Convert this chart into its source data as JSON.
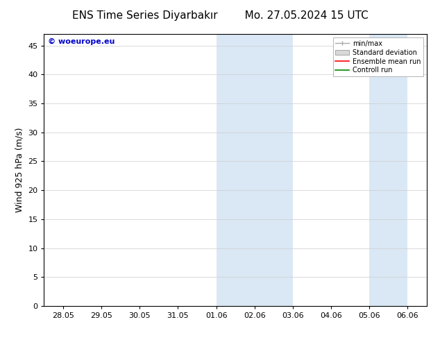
{
  "title_left": "ENS Time Series Diyarbakır",
  "title_right": "Mo. 27.05.2024 15 UTC",
  "ylabel": "Wind 925 hPa (m/s)",
  "watermark": "© woeurope.eu",
  "watermark_color": "#0000cc",
  "x_tick_labels": [
    "28.05",
    "29.05",
    "30.05",
    "31.05",
    "01.06",
    "02.06",
    "03.06",
    "04.06",
    "05.06",
    "06.06"
  ],
  "x_tick_positions": [
    0,
    1,
    2,
    3,
    4,
    5,
    6,
    7,
    8,
    9
  ],
  "xlim": [
    -0.5,
    9.5
  ],
  "ylim": [
    0,
    47
  ],
  "yticks": [
    0,
    5,
    10,
    15,
    20,
    25,
    30,
    35,
    40,
    45
  ],
  "background_color": "#ffffff",
  "plot_bg_color": "#ffffff",
  "shaded_regions": [
    {
      "x_start": 4,
      "x_end": 5,
      "color": "#dae8f5"
    },
    {
      "x_start": 5,
      "x_end": 6,
      "color": "#dae8f5"
    },
    {
      "x_start": 8,
      "x_end": 9,
      "color": "#dae8f5"
    }
  ],
  "legend_labels": [
    "min/max",
    "Standard deviation",
    "Ensemble mean run",
    "Controll run"
  ],
  "legend_line_colors": [
    "#aaaaaa",
    "#cccccc",
    "#ff0000",
    "#008800"
  ],
  "title_fontsize": 11,
  "ylabel_fontsize": 9,
  "tick_fontsize": 8,
  "legend_fontsize": 7,
  "watermark_fontsize": 8,
  "grid_color": "#cccccc",
  "border_color": "#000000"
}
